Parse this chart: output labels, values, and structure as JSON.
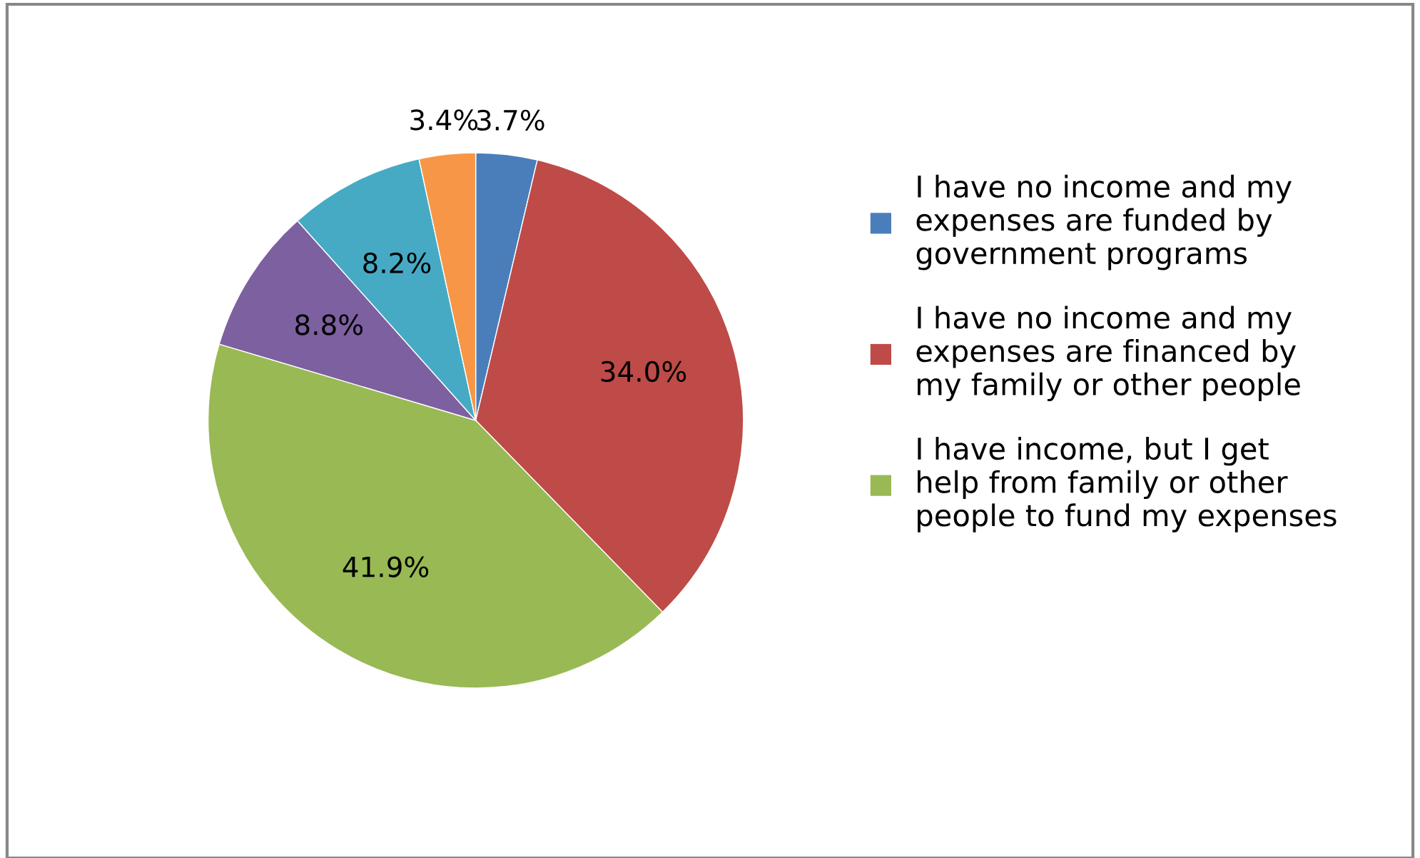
{
  "chart_data": {
    "type": "pie",
    "categories": [
      "I have no income and my expenses are funded by government programs",
      "I have no income and my expenses are financed by my family or other people",
      "I have income, but I get help from family or other people to fund my expenses",
      null,
      null,
      null
    ],
    "values": [
      3.7,
      34.0,
      41.9,
      8.8,
      8.2,
      3.4
    ],
    "value_labels": [
      "3.7%",
      "34.0%",
      "41.9%",
      "8.8%",
      "8.2%",
      "3.4%"
    ],
    "colors": [
      "#4a7ebb",
      "#be4b48",
      "#98b954",
      "#7d60a0",
      "#46aac5",
      "#f79646"
    ],
    "legend": "right"
  }
}
